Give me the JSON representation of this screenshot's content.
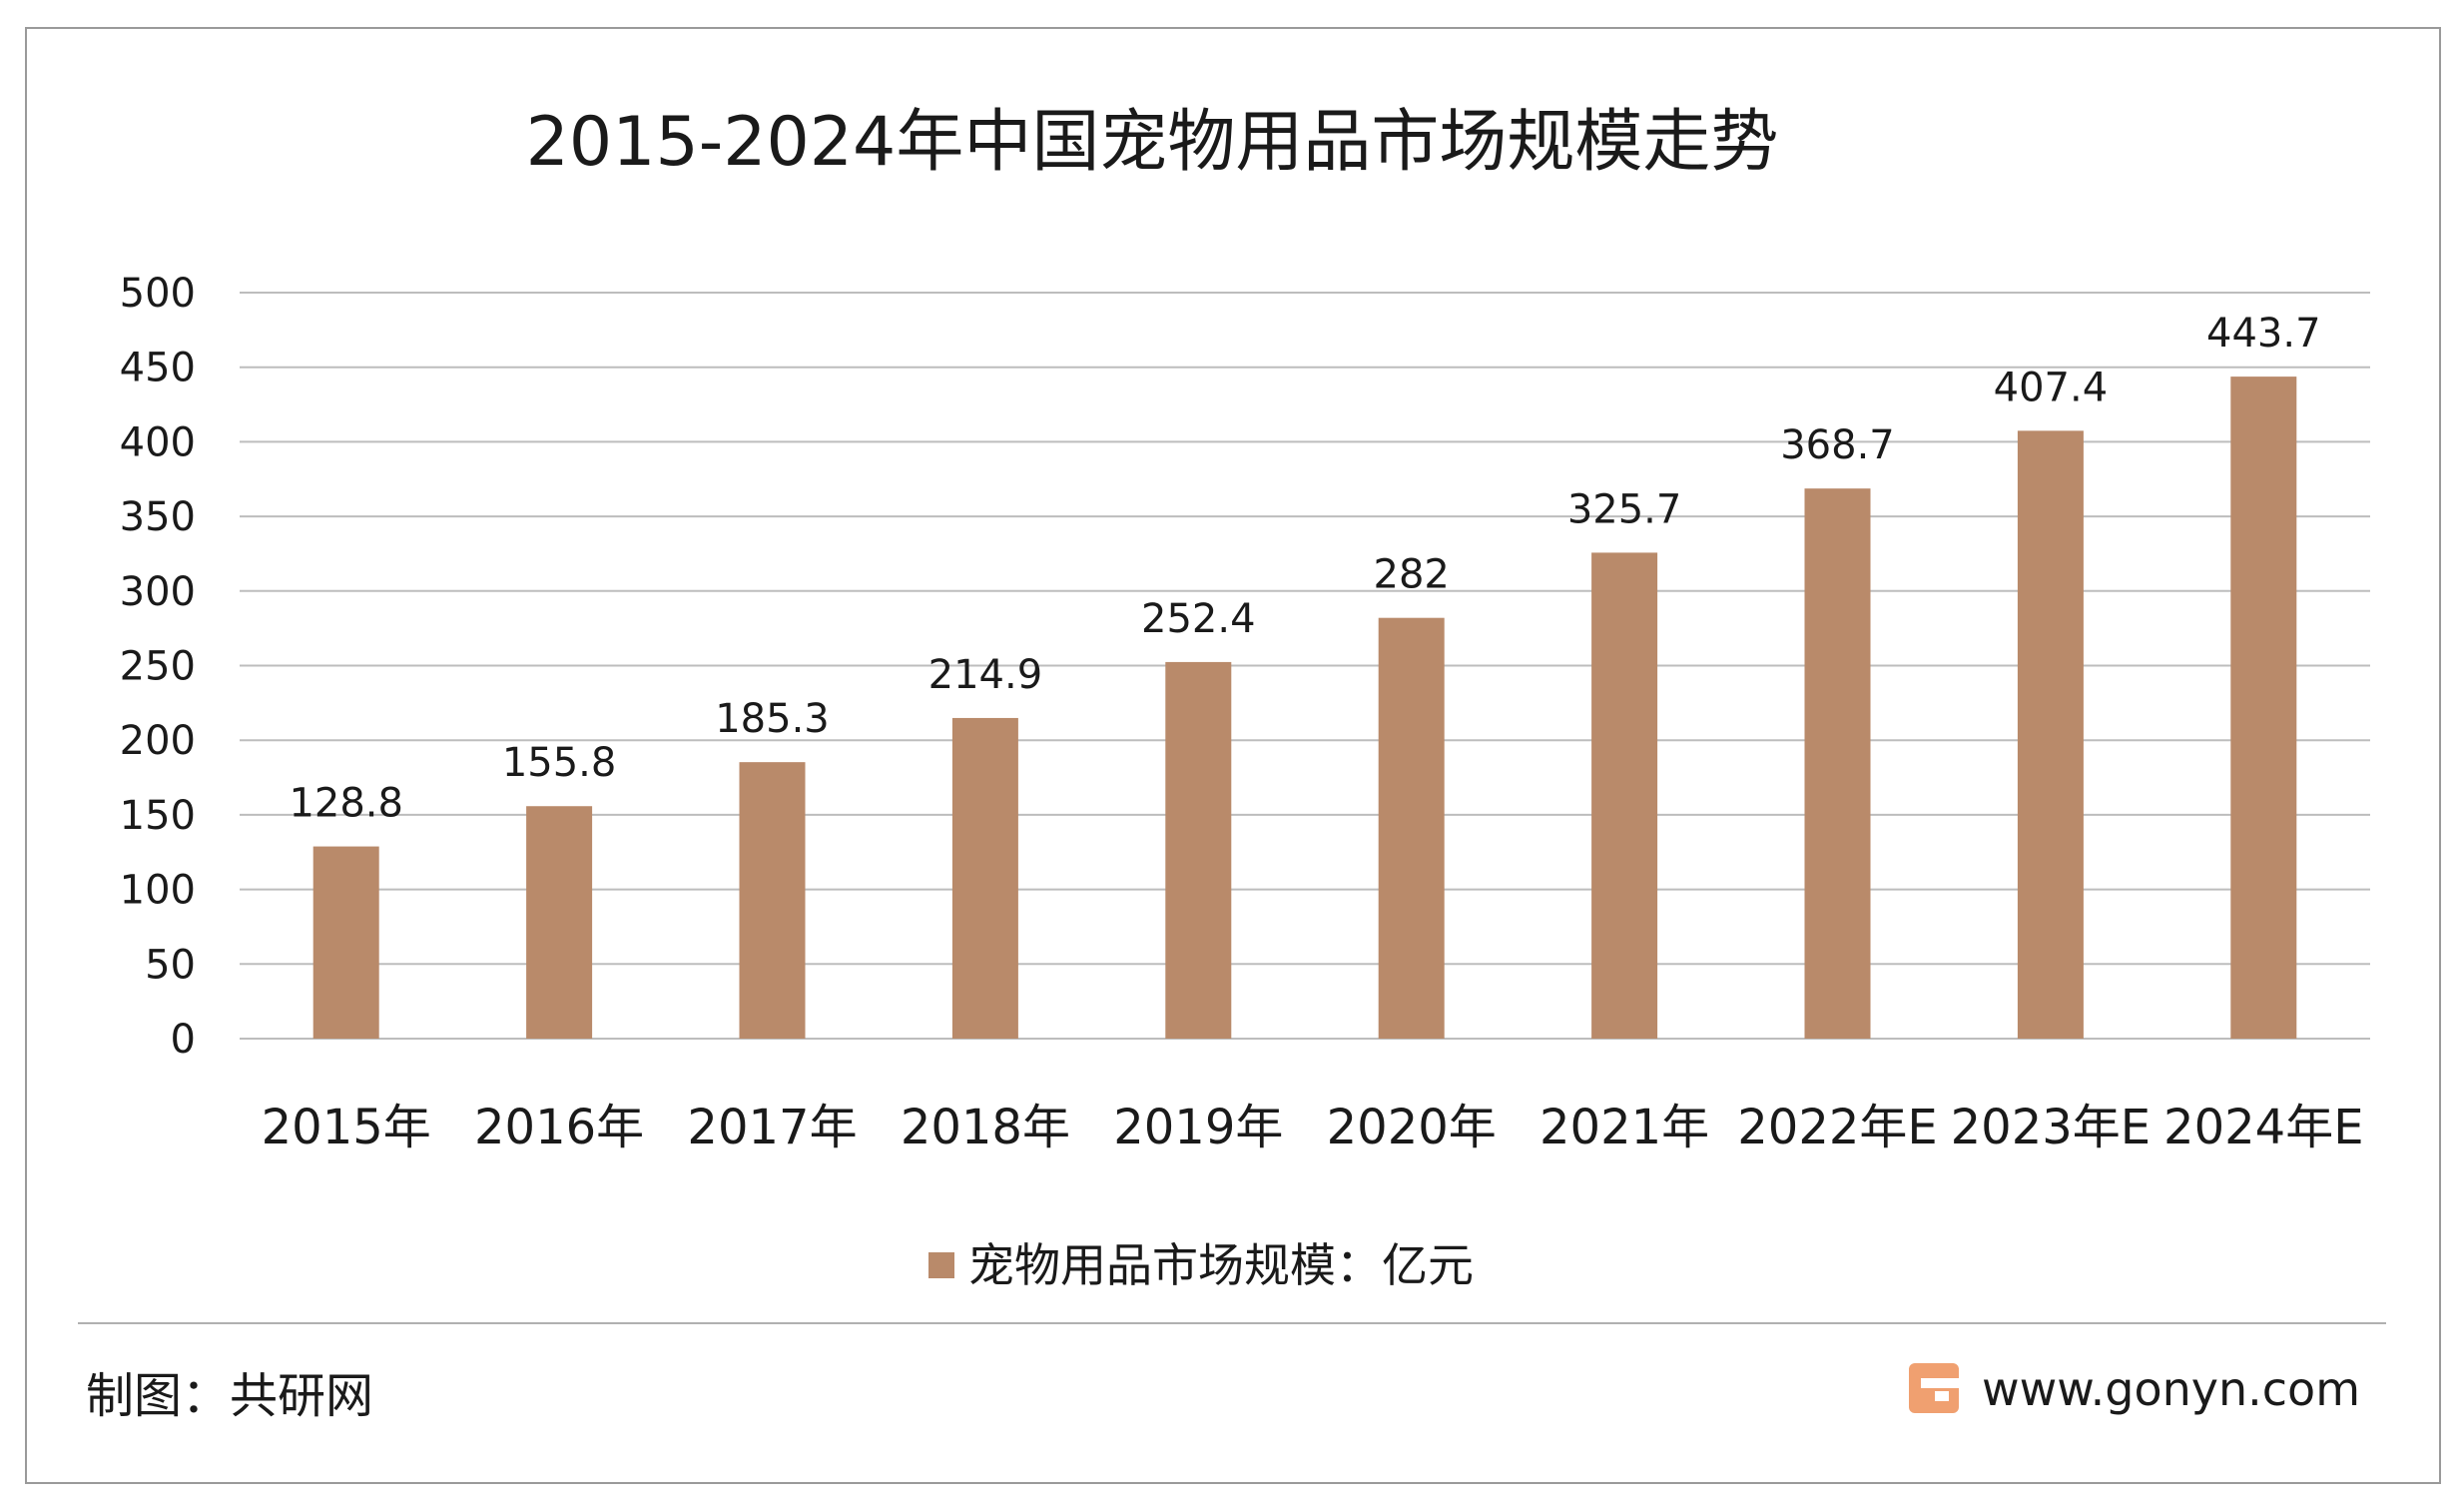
{
  "chart_data": {
    "type": "bar",
    "title": "2015-2024年中国宠物用品市场规模走势",
    "categories": [
      "2015年",
      "2016年",
      "2017年",
      "2018年",
      "2019年",
      "2020年",
      "2021年",
      "2022年E",
      "2023年E",
      "2024年E"
    ],
    "series": [
      {
        "name": "宠物用品市场规模：亿元",
        "values": [
          128.8,
          155.8,
          185.3,
          214.9,
          252.4,
          282,
          325.7,
          368.7,
          407.4,
          443.7
        ],
        "color": "#b98a6a"
      }
    ],
    "data_labels": [
      "128.8",
      "155.8",
      "185.3",
      "214.9",
      "252.4",
      "282",
      "325.7",
      "368.7",
      "407.4",
      "443.7"
    ],
    "ylim": [
      0,
      500
    ],
    "yticks": [
      0,
      50,
      100,
      150,
      200,
      250,
      300,
      350,
      400,
      450,
      500
    ],
    "grid": true,
    "legend_position": "bottom"
  },
  "footer": {
    "credit": "制图：共研网",
    "website": "www.gonyn.com",
    "logo_colors": [
      "#f0a070",
      "#e8756a"
    ]
  }
}
